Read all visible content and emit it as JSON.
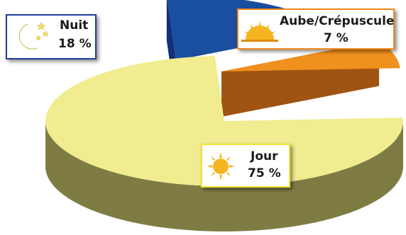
{
  "chart_data": {
    "type": "pie",
    "style": "3d-exploded",
    "slices": [
      {
        "label": "Jour",
        "value": 75,
        "value_text": "75 %",
        "color": "#f0ec8f",
        "side_color": "#7f7c43",
        "icon": "sun-icon"
      },
      {
        "label": "Nuit",
        "value": 18,
        "value_text": "18 %",
        "color": "#1a4e9e",
        "side_color": "#122f7a",
        "icon": "moon-stars-icon"
      },
      {
        "label": "Aube/Crépuscule",
        "value": 7,
        "value_text": "7 %",
        "color": "#f0901e",
        "side_color": "#a05412",
        "icon": "sunrise-icon"
      }
    ]
  },
  "labels": {
    "jour": {
      "name": "Jour",
      "value": "75 %",
      "border": "#f2e635"
    },
    "nuit": {
      "name": "Nuit",
      "value": "18 %",
      "border": "#1f3f9b"
    },
    "aube": {
      "name": "Aube/Crépuscule",
      "value": "7 %",
      "border": "#f08a1e"
    }
  }
}
